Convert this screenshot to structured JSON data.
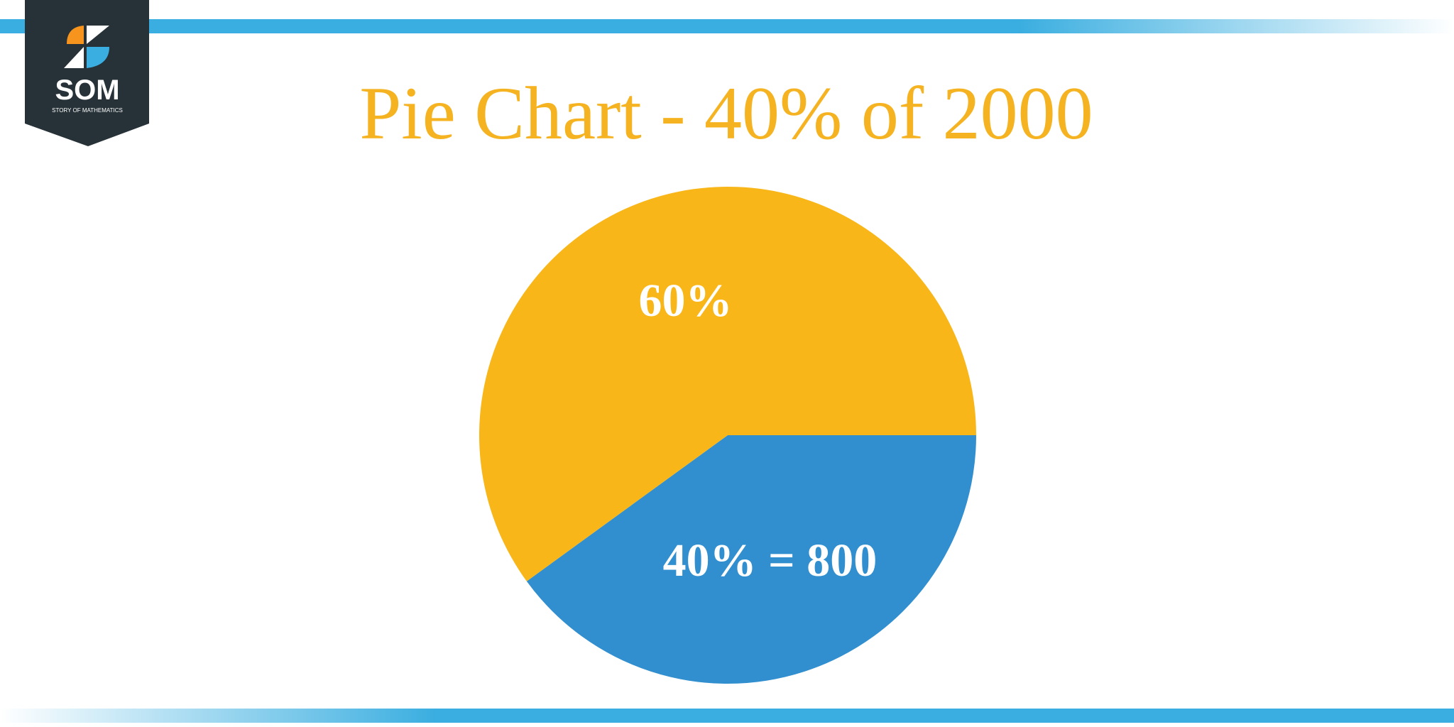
{
  "logo": {
    "text": "SOM",
    "subtitle": "STORY OF MATHEMATICS"
  },
  "chart_data": {
    "type": "pie",
    "title": "Pie Chart - 40% of 2000",
    "values": [
      40,
      60
    ],
    "value_labels": [
      "40% = 800",
      "60%"
    ],
    "colors": [
      "#318fcf",
      "#f8b618"
    ]
  }
}
